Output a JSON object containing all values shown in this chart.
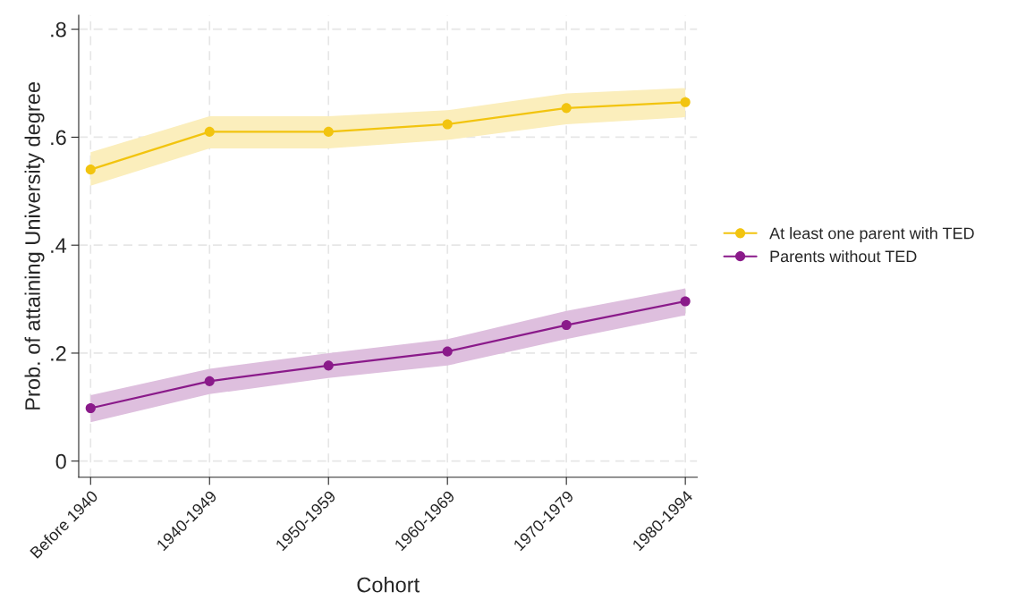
{
  "chart_data": {
    "type": "line",
    "xlabel": "Cohort",
    "ylabel": "Prob. of attaining University degree",
    "categories": [
      "Before 1940",
      "1940-1949",
      "1950-1959",
      "1960-1969",
      "1970-1979",
      "1980-1994"
    ],
    "series": [
      {
        "name": "At least one parent with TED",
        "color": "#f2c40f",
        "values": [
          0.54,
          0.61,
          0.61,
          0.624,
          0.654,
          0.665
        ],
        "lower": [
          0.51,
          0.579,
          0.579,
          0.595,
          0.624,
          0.637
        ],
        "upper": [
          0.572,
          0.639,
          0.639,
          0.65,
          0.681,
          0.691
        ]
      },
      {
        "name": "Parents without TED",
        "color": "#8a1a8a",
        "values": [
          0.098,
          0.148,
          0.177,
          0.203,
          0.252,
          0.296
        ],
        "lower": [
          0.072,
          0.124,
          0.154,
          0.177,
          0.226,
          0.27
        ],
        "upper": [
          0.122,
          0.171,
          0.2,
          0.226,
          0.278,
          0.32
        ]
      }
    ],
    "ylim": [
      -0.03,
      0.826
    ],
    "yticks": [
      0,
      {
        "value": 0.2,
        "label": ".2"
      },
      {
        "value": 0.4,
        "label": ".4"
      },
      {
        "value": 0.6,
        "label": ".6"
      },
      {
        "value": 0.8,
        "label": ".8"
      }
    ],
    "grid": true,
    "legend": "right",
    "marker": "circle",
    "line_style": "solid"
  }
}
